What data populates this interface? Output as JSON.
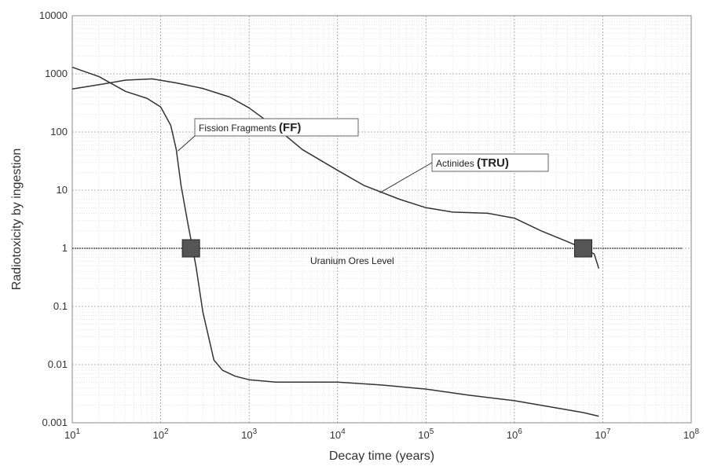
{
  "chart_data": {
    "type": "line",
    "xlabel": "Decay time (years)",
    "ylabel": "Radiotoxicity by ingestion",
    "xscale": "log",
    "yscale": "log",
    "xlim": [
      10,
      100000000
    ],
    "ylim": [
      0.001,
      10000
    ],
    "grid": true,
    "x_ticks": [
      {
        "value": 10,
        "base": "10",
        "exp": "1"
      },
      {
        "value": 100,
        "base": "10",
        "exp": "2"
      },
      {
        "value": 1000,
        "base": "10",
        "exp": "3"
      },
      {
        "value": 10000,
        "base": "10",
        "exp": "4"
      },
      {
        "value": 100000,
        "base": "10",
        "exp": "5"
      },
      {
        "value": 1000000,
        "base": "10",
        "exp": "6"
      },
      {
        "value": 10000000,
        "base": "10",
        "exp": "7"
      },
      {
        "value": 100000000,
        "base": "10",
        "exp": "8"
      }
    ],
    "y_ticks": [
      {
        "value": 10000,
        "label": "10000"
      },
      {
        "value": 1000,
        "label": "1000"
      },
      {
        "value": 100,
        "label": "100"
      },
      {
        "value": 10,
        "label": "10"
      },
      {
        "value": 1,
        "label": "1"
      },
      {
        "value": 0.1,
        "label": "0.1"
      },
      {
        "value": 0.01,
        "label": "0.01"
      },
      {
        "value": 0.001,
        "label": "0.001"
      }
    ],
    "series": [
      {
        "id": "ff",
        "points": [
          [
            10,
            1300
          ],
          [
            20,
            900
          ],
          [
            40,
            500
          ],
          [
            70,
            380
          ],
          [
            100,
            270
          ],
          [
            130,
            130
          ],
          [
            150,
            50
          ],
          [
            170,
            12
          ],
          [
            200,
            3
          ],
          [
            250,
            0.5
          ],
          [
            300,
            0.08
          ],
          [
            400,
            0.012
          ],
          [
            500,
            0.008
          ],
          [
            700,
            0.0063
          ],
          [
            1000,
            0.0055
          ],
          [
            2000,
            0.005
          ],
          [
            5000,
            0.005
          ],
          [
            10000,
            0.005
          ],
          [
            30000,
            0.0045
          ],
          [
            100000,
            0.0038
          ],
          [
            300000,
            0.003
          ],
          [
            1000000,
            0.0024
          ],
          [
            3000000,
            0.0018
          ],
          [
            6000000,
            0.0015
          ],
          [
            9000000,
            0.0013
          ]
        ]
      },
      {
        "id": "tru",
        "points": [
          [
            10,
            550
          ],
          [
            20,
            650
          ],
          [
            40,
            780
          ],
          [
            80,
            820
          ],
          [
            150,
            700
          ],
          [
            300,
            560
          ],
          [
            600,
            400
          ],
          [
            1000,
            260
          ],
          [
            2000,
            120
          ],
          [
            4000,
            50
          ],
          [
            10000,
            22
          ],
          [
            20000,
            12
          ],
          [
            50000,
            7
          ],
          [
            100000,
            5
          ],
          [
            200000,
            4.2
          ],
          [
            500000,
            4
          ],
          [
            1000000,
            3.3
          ],
          [
            2000000,
            2
          ],
          [
            4000000,
            1.3
          ],
          [
            6000000,
            1
          ],
          [
            8000000,
            0.8
          ],
          [
            9000000,
            0.45
          ]
        ]
      },
      {
        "id": "ore",
        "points": [
          [
            10,
            1
          ],
          [
            80000000,
            1
          ]
        ]
      }
    ],
    "annotations": [
      {
        "id": "ff",
        "text": "Fission Fragments",
        "abbr": "(FF)",
        "arrow_to": [
          150,
          50
        ]
      },
      {
        "id": "tru",
        "text": "Actinides",
        "abbr": "(TRU)",
        "arrow_to": [
          30000,
          9
        ]
      },
      {
        "id": "ore",
        "text": "Uranium Ores Level"
      }
    ],
    "markers": [
      {
        "x": 220,
        "y": 1
      },
      {
        "x": 6000000,
        "y": 1
      }
    ]
  }
}
